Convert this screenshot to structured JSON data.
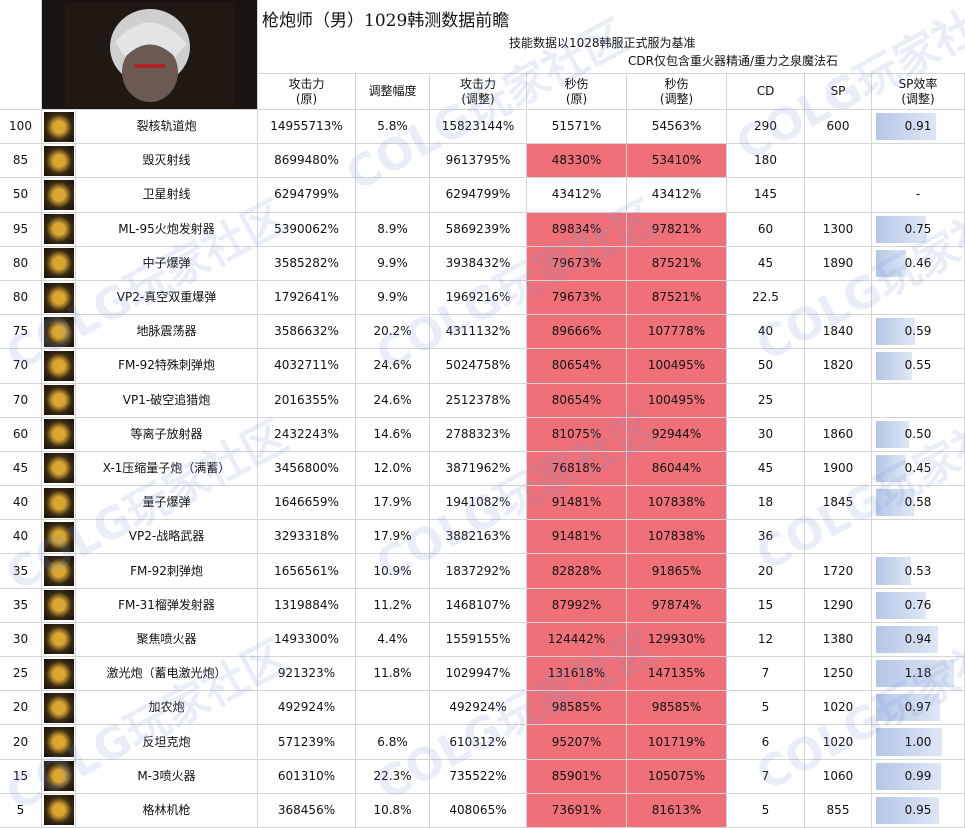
{
  "header": {
    "title": "枪炮师（男）1029韩测数据前瞻",
    "subtitle": "技能数据以1028韩服正式服为基准",
    "note": "CDR仅包含重火器精通/重力之泉魔法石",
    "watermark": "COLG玩家社区"
  },
  "table": {
    "dps_fill": "#ef7078",
    "bar_fill": "#b4c6e7",
    "columns": [
      [
        "攻击力",
        "(原)"
      ],
      [
        "调整幅度"
      ],
      [
        "攻击力",
        "(调整)"
      ],
      [
        "秒伤",
        "(原)"
      ],
      [
        "秒伤",
        "(调整)"
      ],
      [
        "CD"
      ],
      [
        "SP"
      ],
      [
        "SP效率",
        "(调整)"
      ]
    ],
    "rows": [
      {
        "level": 100,
        "name": "裂核轨道炮",
        "cells": [
          "14955713%",
          "5.8%",
          "15823144%",
          "51571%",
          "54563%",
          290,
          600,
          "0.91"
        ],
        "highlight": false
      },
      {
        "level": 85,
        "name": "毁灭射线",
        "cells": [
          "8699480%",
          null,
          "9613795%",
          "48330%",
          "53410%",
          180,
          null,
          null
        ],
        "highlight": true
      },
      {
        "level": 50,
        "name": "卫星射线",
        "cells": [
          "6294799%",
          null,
          "6294799%",
          "43412%",
          "43412%",
          145,
          null,
          "-"
        ],
        "highlight": false
      },
      {
        "level": 95,
        "name": "ML-95火炮发射器",
        "cells": [
          "5390062%",
          "8.9%",
          "5869239%",
          "89834%",
          "97821%",
          60,
          1300,
          "0.75"
        ],
        "highlight": true
      },
      {
        "level": 80,
        "name": "中子爆弹",
        "cells": [
          "3585282%",
          "9.9%",
          "3938432%",
          "79673%",
          "87521%",
          45,
          1890,
          "0.46"
        ],
        "highlight": true
      },
      {
        "level": 80,
        "name": "VP2-真空双重爆弹",
        "cells": [
          "1792641%",
          "9.9%",
          "1969216%",
          "79673%",
          "87521%",
          22.5,
          null,
          null
        ],
        "highlight": true
      },
      {
        "level": 75,
        "name": "地脉震荡器",
        "cells": [
          "3586632%",
          "20.2%",
          "4311132%",
          "89666%",
          "107778%",
          40,
          1840,
          "0.59"
        ],
        "highlight": true
      },
      {
        "level": 70,
        "name": "FM-92特殊刺弹炮",
        "cells": [
          "4032711%",
          "24.6%",
          "5024758%",
          "80654%",
          "100495%",
          50,
          1820,
          "0.55"
        ],
        "highlight": true
      },
      {
        "level": 70,
        "name": "VP1-破空追猎炮",
        "cells": [
          "2016355%",
          "24.6%",
          "2512378%",
          "80654%",
          "100495%",
          25,
          null,
          null
        ],
        "highlight": true
      },
      {
        "level": 60,
        "name": "等离子放射器",
        "cells": [
          "2432243%",
          "14.6%",
          "2788323%",
          "81075%",
          "92944%",
          30,
          1860,
          "0.50"
        ],
        "highlight": true
      },
      {
        "level": 45,
        "name": "X-1压缩量子炮（满蓄）",
        "cells": [
          "3456800%",
          "12.0%",
          "3871962%",
          "76818%",
          "86044%",
          45,
          1900,
          "0.45"
        ],
        "highlight": true
      },
      {
        "level": 40,
        "name": "量子爆弹",
        "cells": [
          "1646659%",
          "17.9%",
          "1941082%",
          "91481%",
          "107838%",
          18,
          1845,
          "0.58"
        ],
        "highlight": true
      },
      {
        "level": 40,
        "name": "VP2-战略武器",
        "cells": [
          "3293318%",
          "17.9%",
          "3882163%",
          "91481%",
          "107838%",
          36,
          null,
          null
        ],
        "highlight": true
      },
      {
        "level": 35,
        "name": "FM-92刺弹炮",
        "cells": [
          "1656561%",
          "10.9%",
          "1837292%",
          "82828%",
          "91865%",
          20,
          1720,
          "0.53"
        ],
        "highlight": true
      },
      {
        "level": 35,
        "name": "FM-31榴弹发射器",
        "cells": [
          "1319884%",
          "11.2%",
          "1468107%",
          "87992%",
          "97874%",
          15,
          1290,
          "0.76"
        ],
        "highlight": true
      },
      {
        "level": 30,
        "name": "聚焦喷火器",
        "cells": [
          "1493300%",
          "4.4%",
          "1559155%",
          "124442%",
          "129930%",
          12,
          1380,
          "0.94"
        ],
        "highlight": true
      },
      {
        "level": 25,
        "name": "激光炮（蓄电激光炮）",
        "cells": [
          "921323%",
          "11.8%",
          "1029947%",
          "131618%",
          "147135%",
          7,
          1250,
          "1.18"
        ],
        "highlight": true
      },
      {
        "level": 20,
        "name": "加农炮",
        "cells": [
          "492924%",
          null,
          "492924%",
          "98585%",
          "98585%",
          5,
          1020,
          "0.97"
        ],
        "highlight": true
      },
      {
        "level": 20,
        "name": "反坦克炮",
        "cells": [
          "571239%",
          "6.8%",
          "610312%",
          "95207%",
          "101719%",
          6,
          1020,
          "1.00"
        ],
        "highlight": true
      },
      {
        "level": 15,
        "name": "M-3喷火器",
        "cells": [
          "601310%",
          "22.3%",
          "735522%",
          "85901%",
          "105075%",
          7,
          1060,
          "0.99"
        ],
        "highlight": true
      },
      {
        "level": 5,
        "name": "格林机枪",
        "cells": [
          "368456%",
          "10.8%",
          "408065%",
          "73691%",
          "81613%",
          5,
          855,
          "0.95"
        ],
        "highlight": true
      }
    ]
  }
}
